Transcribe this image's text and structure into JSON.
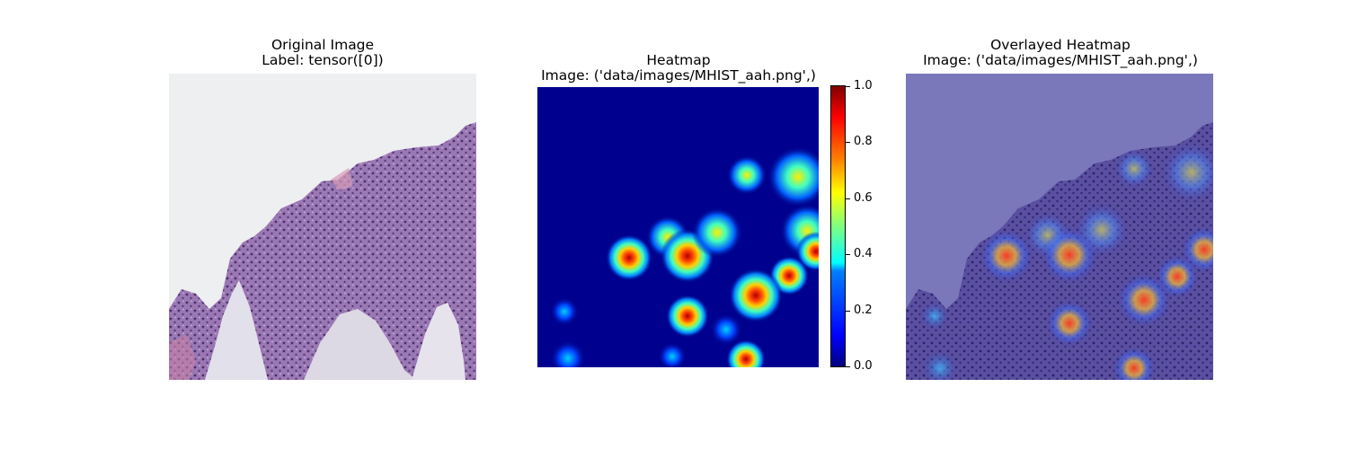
{
  "panels": [
    {
      "title_line1": "Original Image",
      "title_line2": "Label: tensor([0])"
    },
    {
      "title_line1": "Heatmap",
      "title_line2": "Image: ('data/images/MHIST_aah.png',)"
    },
    {
      "title_line1": "Overlayed Heatmap",
      "title_line2": "Image: ('data/images/MHIST_aah.png',)"
    }
  ],
  "colorbar": {
    "ticks": [
      "0.0",
      "0.2",
      "0.4",
      "0.6",
      "0.8",
      "1.0"
    ],
    "colormap": "jet"
  },
  "colors": {
    "tissue": "#8e6aa8",
    "background_slide": "#eeeff0",
    "heat_low": "#00007f",
    "heat_high": "#7f0000"
  }
}
